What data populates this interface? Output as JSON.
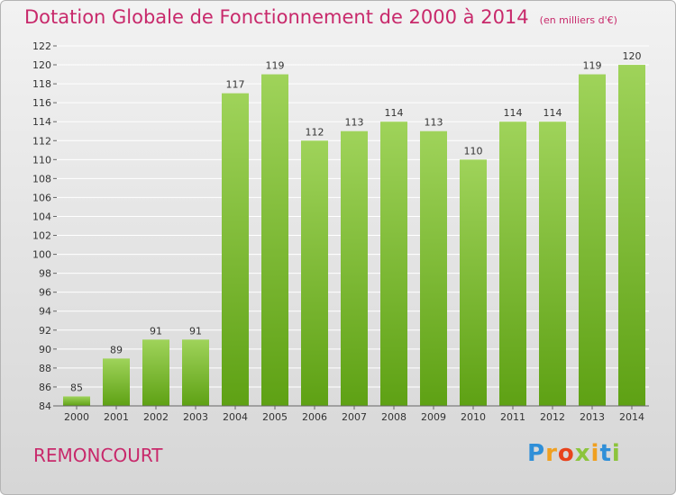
{
  "header": {
    "title": "Dotation Globale de Fonctionnement de 2000 à 2014",
    "unit": "(en milliers d'€)"
  },
  "footer": {
    "commune": "REMONCOURT",
    "logo": {
      "text": "Proxiti",
      "letter_colors": [
        "#2f8fd8",
        "#f0a020",
        "#e8431c",
        "#8cc43c",
        "#f0a020",
        "#2f8fd8",
        "#8cc43c"
      ]
    }
  },
  "colors": {
    "title": "#c8296b",
    "bar_top": "#9fd35a",
    "bar_bottom": "#5ea114",
    "grid": "#ffffff",
    "text": "#333333"
  },
  "chart_data": {
    "type": "bar",
    "categories": [
      "2000",
      "2001",
      "2002",
      "2003",
      "2004",
      "2005",
      "2006",
      "2007",
      "2008",
      "2009",
      "2010",
      "2011",
      "2012",
      "2013",
      "2014"
    ],
    "values": [
      85,
      89,
      91,
      91,
      117,
      119,
      112,
      113,
      114,
      113,
      110,
      114,
      114,
      119,
      120
    ],
    "data_labels": [
      "85",
      "89",
      "91",
      "91",
      "117",
      "119",
      "112",
      "113",
      "114",
      "113",
      "110",
      "114",
      "114",
      "119",
      "120"
    ],
    "y_ticks": [
      "84",
      "86",
      "88",
      "90",
      "92",
      "94",
      "96",
      "98",
      "100",
      "102",
      "104",
      "106",
      "108",
      "110",
      "112",
      "114",
      "116",
      "118",
      "120",
      "122"
    ],
    "ylim": [
      84,
      122
    ],
    "ystep": 2,
    "grid": true,
    "legend": "none"
  }
}
